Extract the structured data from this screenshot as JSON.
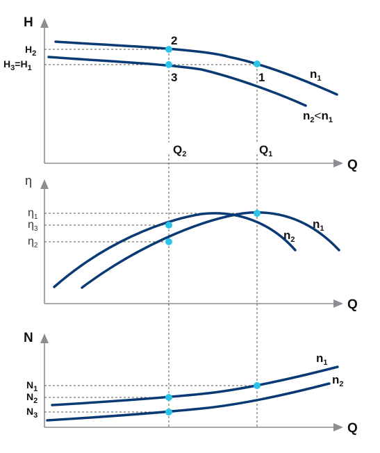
{
  "colors": {
    "curve": "#0a3a73",
    "axis": "#8a8d91",
    "point": "#29c4e8",
    "guide": "#555555"
  },
  "top_panel": {
    "y_axis": {
      "base": "H"
    },
    "x_axis": "Q",
    "tick_h2": {
      "base": "H",
      "sub": "2"
    },
    "tick_h3h1": {
      "a": "H",
      "a_sub": "3",
      "eq": "=",
      "b": "H",
      "b_sub": "1"
    },
    "points": {
      "p2": "2",
      "p3": "3",
      "p1": "1"
    },
    "q2": {
      "base": "Q",
      "sub": "2"
    },
    "q1": {
      "base": "Q",
      "sub": "1"
    },
    "curve_n1": {
      "base": "n",
      "sub": "1"
    },
    "curve_n2": {
      "a": "n",
      "a_sub": "2",
      "rel": "<",
      "b": "n",
      "b_sub": "1"
    }
  },
  "mid_panel": {
    "y_axis": "η",
    "x_axis": "Q",
    "tick_eta1": {
      "base": "η",
      "sub": "1"
    },
    "tick_eta3": {
      "base": "η",
      "sub": "3"
    },
    "tick_eta2": {
      "base": "η",
      "sub": "2"
    },
    "curve_n1": {
      "base": "n",
      "sub": "1"
    },
    "curve_n2": {
      "base": "n",
      "sub": "2"
    }
  },
  "bottom_panel": {
    "y_axis": "N",
    "x_axis": "Q",
    "tick_n1": {
      "base": "N",
      "sub": "1"
    },
    "tick_n2": {
      "base": "N",
      "sub": "2"
    },
    "tick_n3": {
      "base": "N",
      "sub": "3"
    },
    "curve_n1": {
      "base": "n",
      "sub": "1"
    },
    "curve_n2": {
      "base": "n",
      "sub": "2"
    }
  }
}
